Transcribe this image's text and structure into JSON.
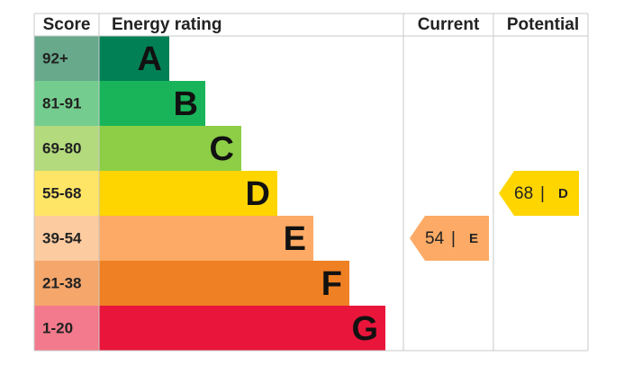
{
  "header": {
    "score": "Score",
    "rating": "Energy rating",
    "current": "Current",
    "potential": "Potential"
  },
  "bands": [
    {
      "score": "92+",
      "letter": "A",
      "score_color": "#68a98c",
      "bar_color": "#008054"
    },
    {
      "score": "81-91",
      "letter": "B",
      "score_color": "#74cd8e",
      "bar_color": "#19b459"
    },
    {
      "score": "69-80",
      "letter": "C",
      "score_color": "#b3da7c",
      "bar_color": "#8dce46"
    },
    {
      "score": "55-68",
      "letter": "D",
      "score_color": "#ffe566",
      "bar_color": "#ffd500"
    },
    {
      "score": "39-54",
      "letter": "E",
      "score_color": "#fdcba0",
      "bar_color": "#fcaa65"
    },
    {
      "score": "21-38",
      "letter": "F",
      "score_color": "#f4a66b",
      "bar_color": "#ef8023"
    },
    {
      "score": "1-20",
      "letter": "G",
      "score_color": "#f27a8c",
      "bar_color": "#e9153b"
    }
  ],
  "current": {
    "score": 54,
    "separator": "|",
    "rating": "E"
  },
  "potential": {
    "score": 68,
    "separator": "|",
    "rating": "D"
  }
}
